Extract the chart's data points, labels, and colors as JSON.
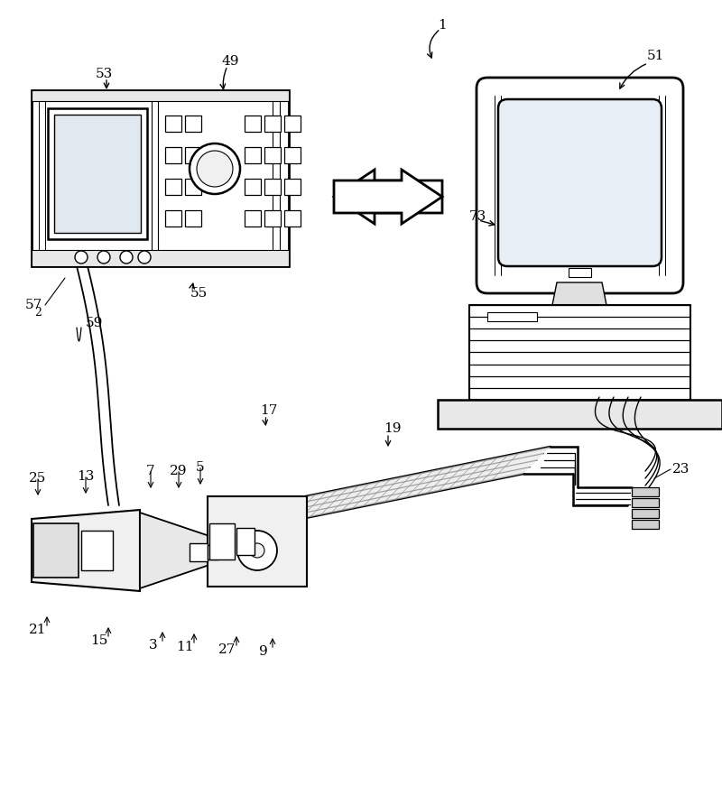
{
  "bg": "#ffffff",
  "lc": "#000000",
  "figsize": [
    8.0,
    8.71
  ],
  "dpi": 100
}
